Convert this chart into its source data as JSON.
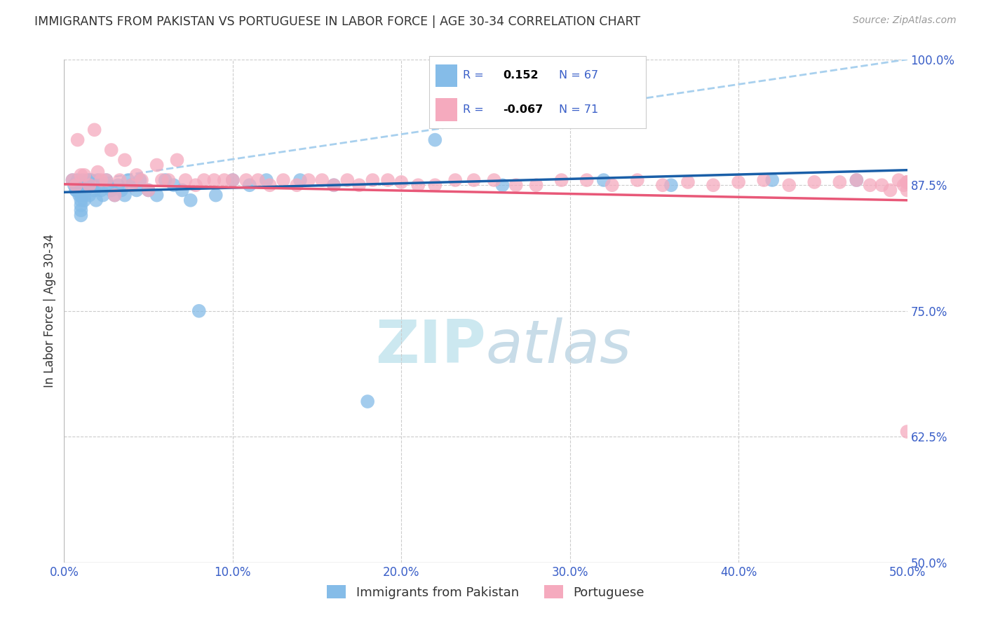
{
  "title": "IMMIGRANTS FROM PAKISTAN VS PORTUGUESE IN LABOR FORCE | AGE 30-34 CORRELATION CHART",
  "source": "Source: ZipAtlas.com",
  "ylabel": "In Labor Force | Age 30-34",
  "xlim": [
    0.0,
    0.5
  ],
  "ylim": [
    0.5,
    1.0
  ],
  "blue_R": 0.152,
  "blue_N": 67,
  "pink_R": -0.067,
  "pink_N": 71,
  "blue_color": "#85bce8",
  "pink_color": "#f5aabe",
  "blue_line_color": "#1a5fa8",
  "pink_line_color": "#e85878",
  "blue_dash_color": "#a8d0ee",
  "title_color": "#333333",
  "axis_label_color": "#333333",
  "tick_color": "#3a5fc8",
  "grid_color": "#cccccc",
  "watermark_color": "#cce8f0",
  "legend_R_color": "#3a5fc8",
  "blue_x": [
    0.005,
    0.006,
    0.007,
    0.007,
    0.008,
    0.008,
    0.009,
    0.009,
    0.009,
    0.01,
    0.01,
    0.01,
    0.01,
    0.01,
    0.01,
    0.01,
    0.011,
    0.011,
    0.012,
    0.012,
    0.012,
    0.013,
    0.013,
    0.014,
    0.014,
    0.015,
    0.015,
    0.016,
    0.016,
    0.017,
    0.018,
    0.019,
    0.02,
    0.021,
    0.022,
    0.023,
    0.025,
    0.026,
    0.028,
    0.03,
    0.032,
    0.034,
    0.036,
    0.038,
    0.04,
    0.043,
    0.045,
    0.05,
    0.055,
    0.06,
    0.065,
    0.07,
    0.075,
    0.08,
    0.09,
    0.1,
    0.11,
    0.12,
    0.14,
    0.16,
    0.18,
    0.22,
    0.26,
    0.32,
    0.36,
    0.42,
    0.47
  ],
  "blue_y": [
    0.88,
    0.875,
    0.87,
    0.87,
    0.875,
    0.88,
    0.875,
    0.87,
    0.865,
    0.875,
    0.87,
    0.865,
    0.86,
    0.855,
    0.85,
    0.845,
    0.88,
    0.875,
    0.87,
    0.865,
    0.86,
    0.875,
    0.87,
    0.88,
    0.875,
    0.88,
    0.865,
    0.875,
    0.88,
    0.875,
    0.87,
    0.86,
    0.88,
    0.875,
    0.87,
    0.865,
    0.88,
    0.875,
    0.87,
    0.865,
    0.875,
    0.87,
    0.865,
    0.88,
    0.875,
    0.87,
    0.88,
    0.87,
    0.865,
    0.88,
    0.875,
    0.87,
    0.86,
    0.75,
    0.865,
    0.88,
    0.875,
    0.88,
    0.88,
    0.875,
    0.66,
    0.92,
    0.875,
    0.88,
    0.875,
    0.88,
    0.88
  ],
  "pink_x": [
    0.005,
    0.007,
    0.008,
    0.01,
    0.012,
    0.015,
    0.018,
    0.02,
    0.022,
    0.025,
    0.028,
    0.03,
    0.033,
    0.036,
    0.04,
    0.043,
    0.046,
    0.05,
    0.055,
    0.058,
    0.062,
    0.067,
    0.072,
    0.078,
    0.083,
    0.089,
    0.095,
    0.1,
    0.108,
    0.115,
    0.122,
    0.13,
    0.138,
    0.145,
    0.153,
    0.16,
    0.168,
    0.175,
    0.183,
    0.192,
    0.2,
    0.21,
    0.22,
    0.232,
    0.243,
    0.255,
    0.268,
    0.28,
    0.295,
    0.31,
    0.325,
    0.34,
    0.355,
    0.37,
    0.385,
    0.4,
    0.415,
    0.43,
    0.445,
    0.46,
    0.47,
    0.478,
    0.485,
    0.49,
    0.495,
    0.498,
    0.5,
    0.5,
    0.5,
    0.5,
    0.5
  ],
  "pink_y": [
    0.88,
    0.875,
    0.92,
    0.885,
    0.885,
    0.875,
    0.93,
    0.888,
    0.88,
    0.88,
    0.91,
    0.865,
    0.88,
    0.9,
    0.875,
    0.885,
    0.88,
    0.87,
    0.895,
    0.88,
    0.88,
    0.9,
    0.88,
    0.875,
    0.88,
    0.88,
    0.88,
    0.88,
    0.88,
    0.88,
    0.875,
    0.88,
    0.875,
    0.88,
    0.88,
    0.875,
    0.88,
    0.875,
    0.88,
    0.88,
    0.878,
    0.875,
    0.875,
    0.88,
    0.88,
    0.88,
    0.875,
    0.875,
    0.88,
    0.88,
    0.875,
    0.88,
    0.875,
    0.878,
    0.875,
    0.878,
    0.88,
    0.875,
    0.878,
    0.878,
    0.88,
    0.875,
    0.875,
    0.87,
    0.88,
    0.875,
    0.878,
    0.87,
    0.878,
    0.878,
    0.63
  ],
  "blue_trend": [
    0.868,
    0.89
  ],
  "pink_trend": [
    0.876,
    0.86
  ],
  "dash_line": [
    0.876,
    1.0
  ]
}
